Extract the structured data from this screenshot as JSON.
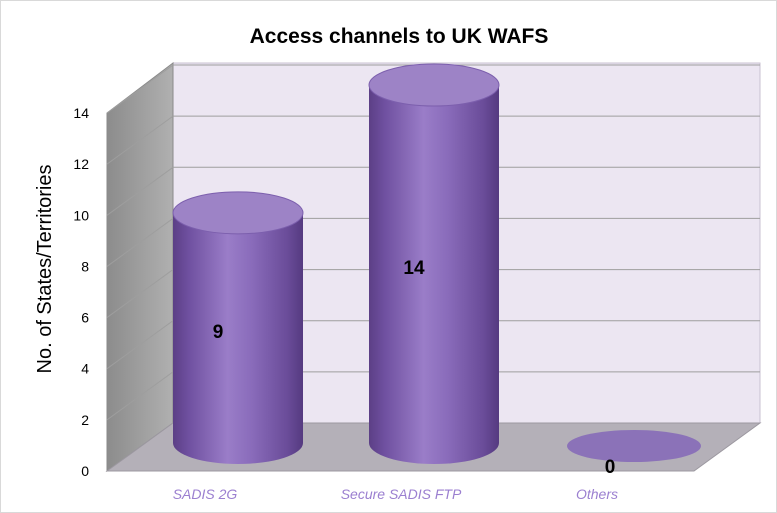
{
  "chart_data": {
    "type": "bar",
    "title": "Access channels to UK WAFS",
    "xlabel": "",
    "ylabel": "No. of States/Territories",
    "categories": [
      "SADIS 2G",
      "Secure SADIS FTP",
      "Others"
    ],
    "values": [
      9,
      14,
      0
    ],
    "data_labels": [
      "9",
      "14",
      "0"
    ],
    "ylim": [
      0,
      14
    ],
    "yticks": [
      "0",
      "2",
      "4",
      "6",
      "8",
      "10",
      "12",
      "14"
    ],
    "grid": true,
    "legend": "none",
    "bar_style": "3d-cylinder",
    "colors": {
      "bar": "#8a68b8",
      "bar_dark": "#5c3f86",
      "bar_top": "#9d83c6",
      "back_wall": "#ece6f2",
      "side_wall": "#9a9a9a",
      "floor": "#b4b0b8",
      "gridline": "#9e9e9e",
      "xtick_text": "#9b7fd0"
    }
  }
}
